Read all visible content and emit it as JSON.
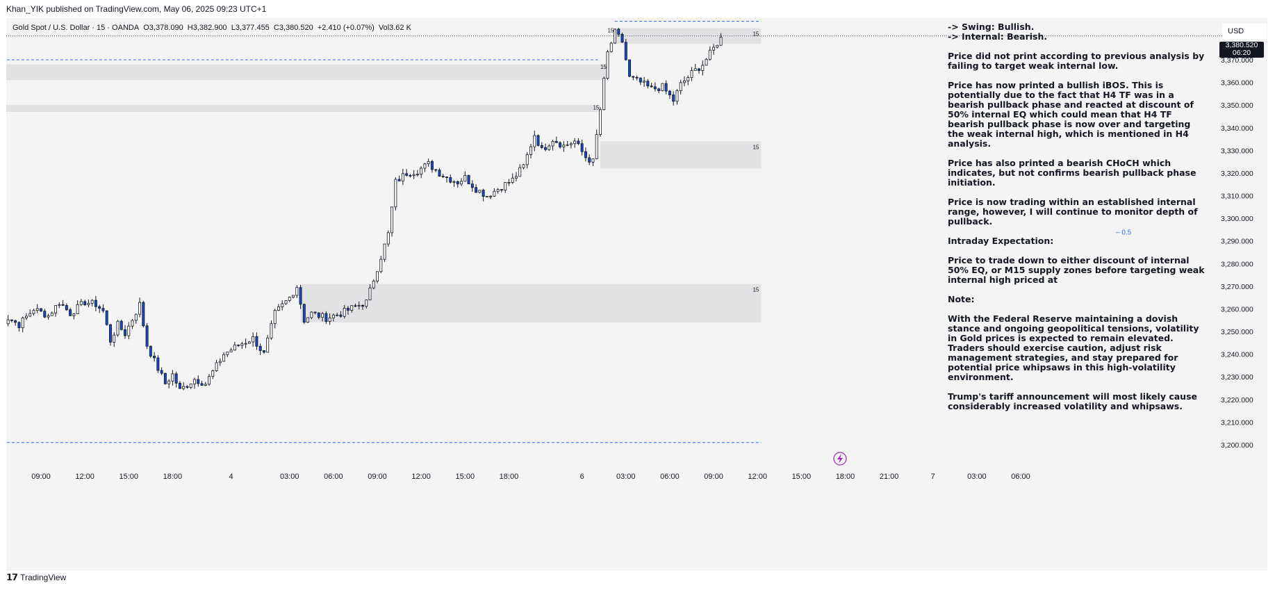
{
  "header": {
    "published": "Khan_YIK published on TradingView.com, May 06, 2025 09:23 UTC+1"
  },
  "symbol": {
    "name": "Gold Spot / U.S. Dollar · 15 · OANDA",
    "open": "O3,378.090",
    "high": "H3,382.900",
    "low": "L3,377.455",
    "close": "C3,380.520",
    "change": "+2.410 (+0.07%)",
    "volume": "Vol3.62 K"
  },
  "price_axis": {
    "currency": "USD",
    "last_price": "3,380.520",
    "countdown": "06:20"
  },
  "notes": {
    "swing": "-> Swing:  Bullish.",
    "internal": "-> Internal:  Bearish.",
    "paragraphs": [
      "Price did not print according to previous analysis by failing to target weak internal low.",
      "Price has now printed a bullish iBOS.  This is potentially due to the fact that H4 TF was in a bearish pullback phase and reacted at discount of 50% internal EQ which could mean that H4 TF bearish pullback phase is now over and targeting the weak internal high, which is mentioned in H4 analysis.",
      "Price has also printed a bearish CHoCH which indicates, but not confirms bearish pullback phase initiation.",
      "Price is now trading within an established internal range, however, I will continue to monitor depth of pullback.",
      "Intraday Expectation:",
      "Price to trade down to either discount of internal 50% EQ, or M15 supply zones before targeting weak internal high priced at",
      "Note:",
      "With the Federal Reserve maintaining a dovish stance and ongoing geopolitical tensions, volatility in Gold prices is expected to remain elevated. Traders should exercise caution, adjust risk management strategies, and stay prepared for potential price whipsaws in this high-volatility environment.",
      "Trump's tariff announcement will most likely cause considerably increased volatility and whipsaws."
    ]
  },
  "footer": {
    "brand": "TradingView"
  },
  "chart_data": {
    "type": "candlestick",
    "colors": {
      "bull": "#ffffff",
      "bear": "#1848cc",
      "wick": "#131722",
      "zone": "#e2e2e4",
      "dash": "#2962ff",
      "flash": "#9c27b0"
    },
    "ylim": [
      3195,
      3390
    ],
    "y_ticks": [
      3370,
      3360,
      3350,
      3340,
      3330,
      3320,
      3310,
      3300,
      3290,
      3280,
      3270,
      3260,
      3250,
      3240,
      3230,
      3220,
      3210,
      3200
    ],
    "y_tick_labels": [
      "3,370.000",
      "3,360.000",
      "3,350.000",
      "3,340.000",
      "3,330.000",
      "3,320.000",
      "3,310.000",
      "3,300.000",
      "3,290.000",
      "3,280.000",
      "3,270.000",
      "3,260.000",
      "3,250.000",
      "3,240.000",
      "3,230.000",
      "3,220.000",
      "3,210.000",
      "3,200.000"
    ],
    "x_ticks": [
      {
        "t": 12,
        "label": "09:00"
      },
      {
        "t": 24,
        "label": "12:00"
      },
      {
        "t": 36,
        "label": "15:00"
      },
      {
        "t": 48,
        "label": "18:00"
      },
      {
        "t": 64,
        "label": "4"
      },
      {
        "t": 80,
        "label": "03:00"
      },
      {
        "t": 92,
        "label": "06:00"
      },
      {
        "t": 104,
        "label": "09:00"
      },
      {
        "t": 116,
        "label": "12:00"
      },
      {
        "t": 128,
        "label": "15:00"
      },
      {
        "t": 140,
        "label": "18:00"
      },
      {
        "t": 160,
        "label": "6"
      },
      {
        "t": 172,
        "label": "03:00"
      },
      {
        "t": 184,
        "label": "06:00"
      },
      {
        "t": 196,
        "label": "09:00"
      },
      {
        "t": 208,
        "label": "12:00"
      },
      {
        "t": 220,
        "label": "15:00"
      },
      {
        "t": 232,
        "label": "18:00"
      },
      {
        "t": 244,
        "label": "21:00"
      },
      {
        "t": 256,
        "label": "7"
      },
      {
        "t": 268,
        "label": "03:00"
      },
      {
        "t": 280,
        "label": "06:00"
      }
    ],
    "anchors": [
      [
        0,
        3252
      ],
      [
        3,
        3256
      ],
      [
        6,
        3253
      ],
      [
        10,
        3260
      ],
      [
        14,
        3257
      ],
      [
        17,
        3263
      ],
      [
        20,
        3258
      ],
      [
        24,
        3263
      ],
      [
        27,
        3262
      ],
      [
        29,
        3259
      ],
      [
        31,
        3246
      ],
      [
        33,
        3253
      ],
      [
        35,
        3249
      ],
      [
        39,
        3262
      ],
      [
        41,
        3244
      ],
      [
        43,
        3237
      ],
      [
        46,
        3227
      ],
      [
        48,
        3231
      ],
      [
        50,
        3224
      ],
      [
        54,
        3229
      ],
      [
        57,
        3227
      ],
      [
        62,
        3240
      ],
      [
        66,
        3244
      ],
      [
        70,
        3247
      ],
      [
        73,
        3240
      ],
      [
        76,
        3258
      ],
      [
        80,
        3265
      ],
      [
        82,
        3270
      ],
      [
        84,
        3255
      ],
      [
        86,
        3258
      ],
      [
        90,
        3256
      ],
      [
        94,
        3258
      ],
      [
        98,
        3261
      ],
      [
        101,
        3263
      ],
      [
        104,
        3278
      ],
      [
        107,
        3293
      ],
      [
        109,
        3316
      ],
      [
        112,
        3320
      ],
      [
        115,
        3321
      ],
      [
        118,
        3324
      ],
      [
        121,
        3320
      ],
      [
        123,
        3318
      ],
      [
        126,
        3316
      ],
      [
        128,
        3318
      ],
      [
        131,
        3313
      ],
      [
        134,
        3310
      ],
      [
        137,
        3313
      ],
      [
        141,
        3317
      ],
      [
        144,
        3323
      ],
      [
        147,
        3337
      ],
      [
        149,
        3330
      ],
      [
        152,
        3335
      ],
      [
        155,
        3332
      ],
      [
        158,
        3334
      ],
      [
        161,
        3327
      ],
      [
        163,
        3325
      ],
      [
        165,
        3348
      ],
      [
        167,
        3373
      ],
      [
        169,
        3382
      ],
      [
        171,
        3378
      ],
      [
        173,
        3362
      ],
      [
        176,
        3360
      ],
      [
        179,
        3357
      ],
      [
        182,
        3358
      ],
      [
        185,
        3352
      ],
      [
        187,
        3359
      ],
      [
        190,
        3364
      ],
      [
        193,
        3368
      ],
      [
        196,
        3375
      ],
      [
        198,
        3380
      ]
    ],
    "zones": [
      {
        "t0": 0,
        "t1": 167,
        "y0": 3361,
        "y1": 3368,
        "label": ""
      },
      {
        "t0": 0,
        "t1": 165,
        "y0": 3347,
        "y1": 3350,
        "label": ""
      },
      {
        "t0": 169,
        "t1": 209,
        "y0": 3377,
        "y1": 3384,
        "label": "15"
      },
      {
        "t0": 165,
        "t1": 209,
        "y0": 3322,
        "y1": 3334,
        "label": "15"
      },
      {
        "t0": 83,
        "t1": 209,
        "y0": 3254,
        "y1": 3271,
        "label": "15"
      }
    ],
    "zone_small_labels": [
      {
        "t": 163,
        "y": 3349,
        "label": "15"
      },
      {
        "t": 165,
        "y": 3367,
        "label": "15"
      },
      {
        "t": 167,
        "y": 3383,
        "label": "15"
      }
    ],
    "dashed_lines": [
      {
        "t0": 0,
        "t1": 165,
        "y": 3370
      },
      {
        "t0": 169,
        "t1": 209,
        "y": 3387
      },
      {
        "t0": 0,
        "t1": 209,
        "y": 3201
      }
    ],
    "last_price_line": 3380.52,
    "eq_label": "0.5",
    "eq_level": 3294
  }
}
